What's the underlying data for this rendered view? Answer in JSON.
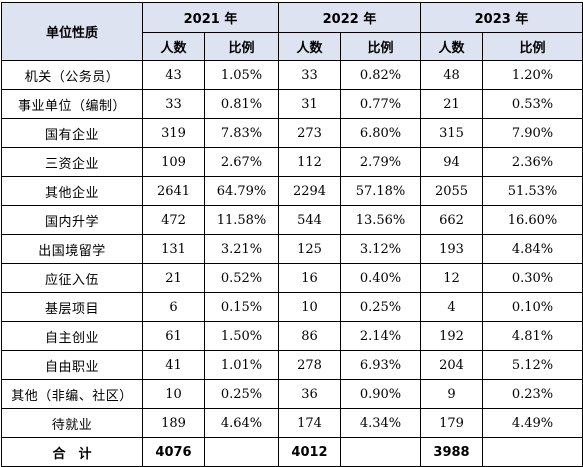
{
  "header": {
    "category_label": "单位性质",
    "years": [
      "2021 年",
      "2022 年",
      "2023 年"
    ],
    "count_label": "人数",
    "ratio_label": "比例"
  },
  "rows": [
    {
      "cat": "机关（公务员）",
      "v": [
        "43",
        "1.05%",
        "33",
        "0.82%",
        "48",
        "1.20%"
      ]
    },
    {
      "cat": "事业单位（编制）",
      "v": [
        "33",
        "0.81%",
        "31",
        "0.77%",
        "21",
        "0.53%"
      ]
    },
    {
      "cat": "国有企业",
      "v": [
        "319",
        "7.83%",
        "273",
        "6.80%",
        "315",
        "7.90%"
      ]
    },
    {
      "cat": "三资企业",
      "v": [
        "109",
        "2.67%",
        "112",
        "2.79%",
        "94",
        "2.36%"
      ]
    },
    {
      "cat": "其他企业",
      "v": [
        "2641",
        "64.79%",
        "2294",
        "57.18%",
        "2055",
        "51.53%"
      ]
    },
    {
      "cat": "国内升学",
      "v": [
        "472",
        "11.58%",
        "544",
        "13.56%",
        "662",
        "16.60%"
      ]
    },
    {
      "cat": "出国境留学",
      "v": [
        "131",
        "3.21%",
        "125",
        "3.12%",
        "193",
        "4.84%"
      ]
    },
    {
      "cat": "应征入伍",
      "v": [
        "21",
        "0.52%",
        "16",
        "0.40%",
        "12",
        "0.30%"
      ]
    },
    {
      "cat": "基层项目",
      "v": [
        "6",
        "0.15%",
        "10",
        "0.25%",
        "4",
        "0.10%"
      ]
    },
    {
      "cat": "自主创业",
      "v": [
        "61",
        "1.50%",
        "86",
        "2.14%",
        "192",
        "4.81%"
      ]
    },
    {
      "cat": "自由职业",
      "v": [
        "41",
        "1.01%",
        "278",
        "6.93%",
        "204",
        "5.12%"
      ]
    },
    {
      "cat": "其他（非编、社区）",
      "v": [
        "10",
        "0.25%",
        "36",
        "0.90%",
        "9",
        "0.23%"
      ]
    },
    {
      "cat": "待就业",
      "v": [
        "189",
        "4.64%",
        "174",
        "4.34%",
        "179",
        "4.49%"
      ]
    }
  ],
  "total": {
    "label": "合　计",
    "v": [
      "4076",
      "",
      "4012",
      "",
      "3988",
      ""
    ]
  }
}
